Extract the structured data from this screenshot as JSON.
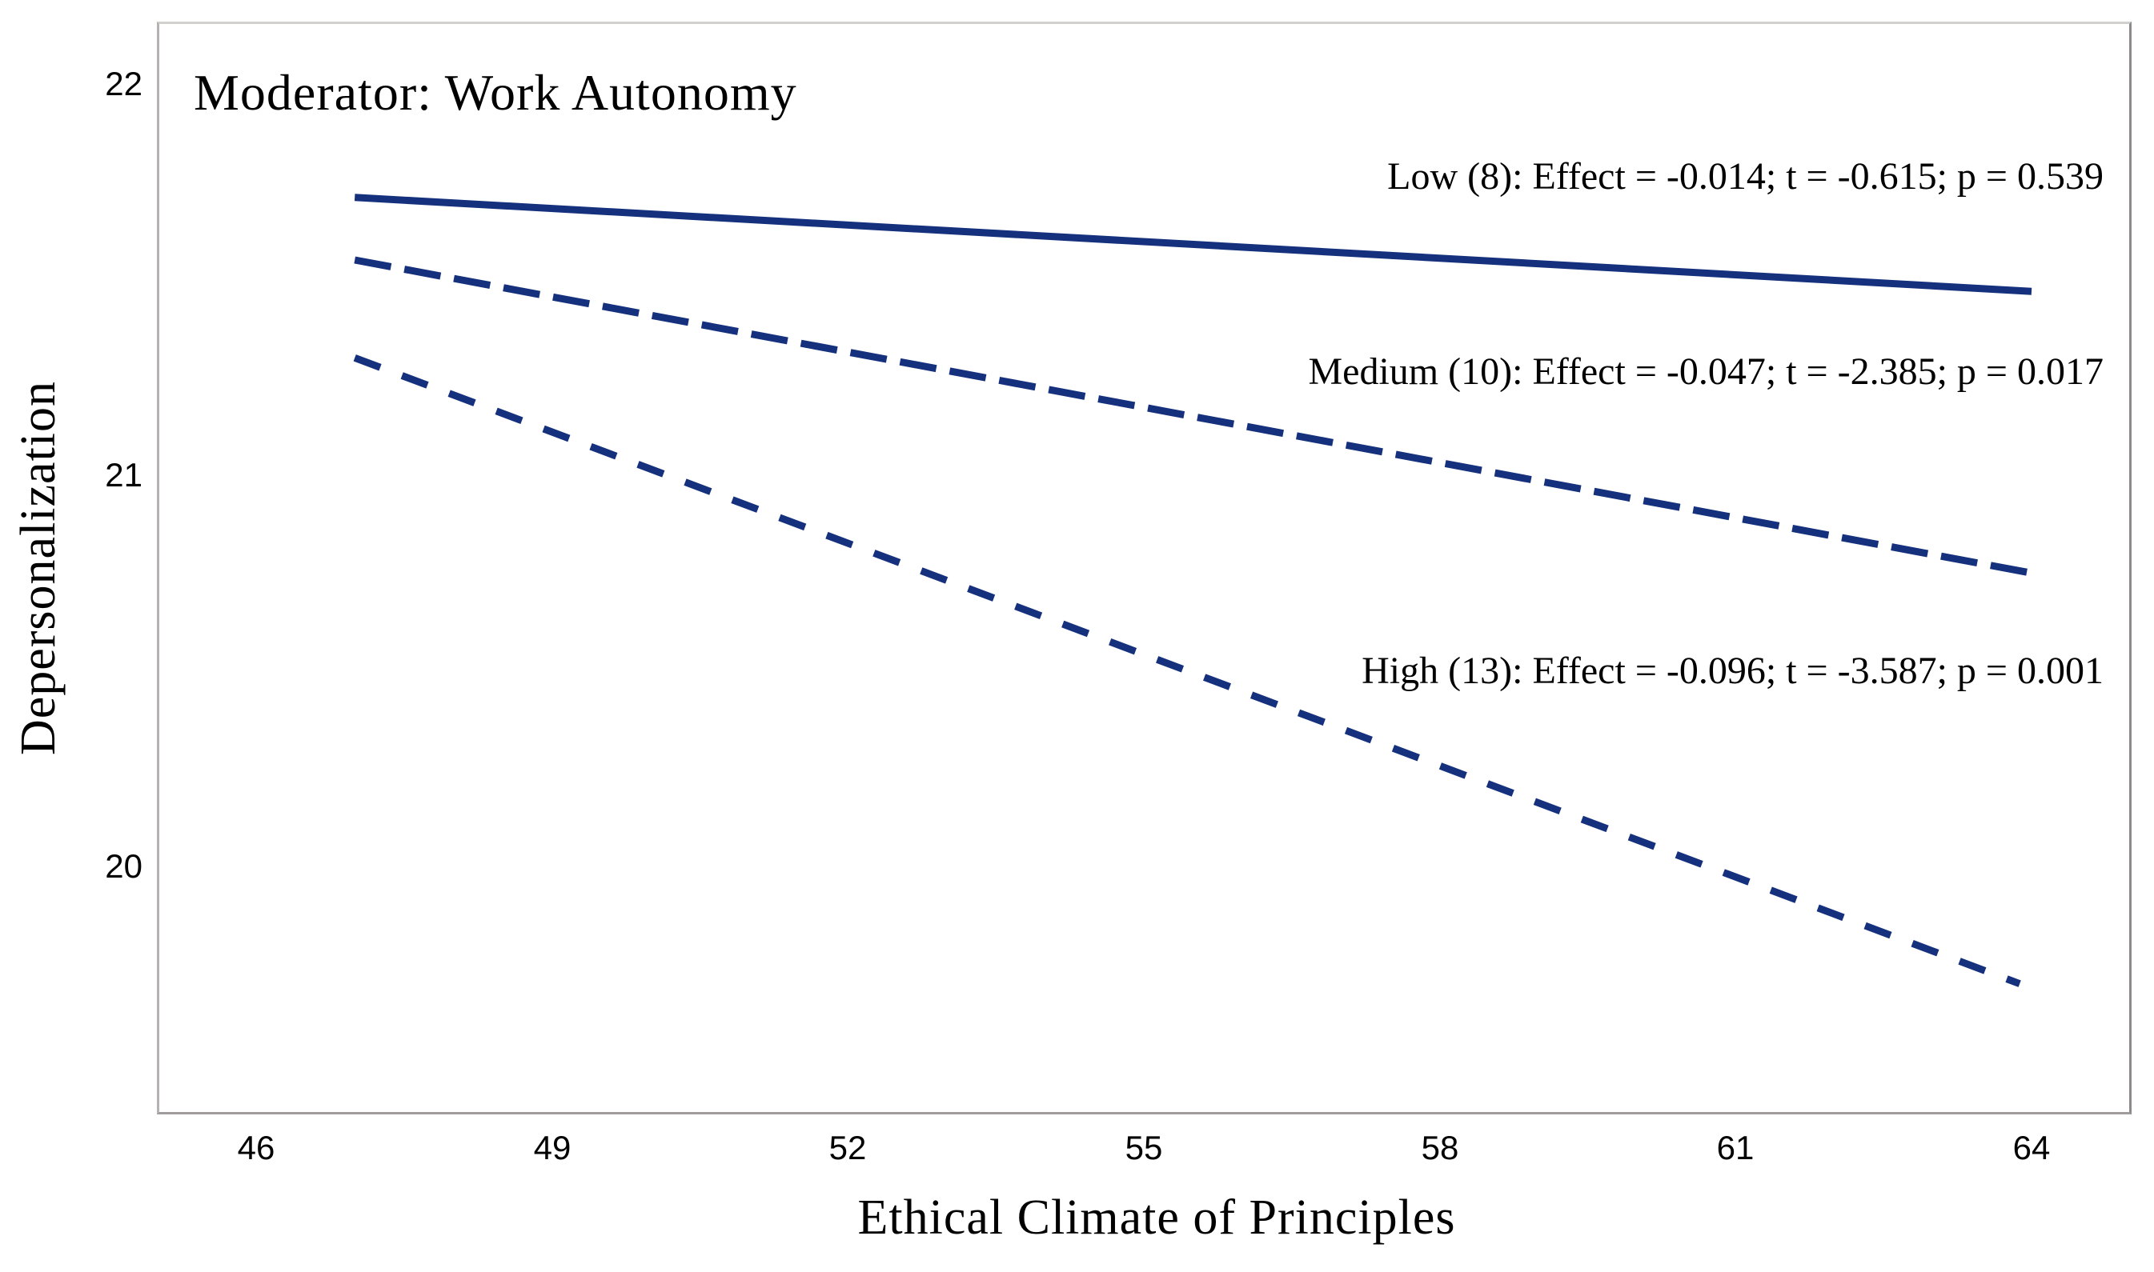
{
  "chart_data": {
    "type": "line",
    "title": "Moderator: Work Autonomy",
    "xlabel": "Ethical Climate of Principles",
    "ylabel": "Depersonalization",
    "x_ticks": [
      46,
      49,
      52,
      55,
      58,
      61,
      64
    ],
    "y_ticks": [
      22,
      21,
      20
    ],
    "xlim": [
      45.0,
      65.0
    ],
    "ylim": [
      19.37,
      22.16
    ],
    "grid": false,
    "legend_position": "inline-annotations",
    "line_color": "#15317d",
    "series": [
      {
        "name": "Low (8)",
        "moderator_value": 8,
        "style": "solid",
        "dash": null,
        "x": [
          47,
          64
        ],
        "y": [
          21.71,
          21.47
        ],
        "effect": -0.014,
        "t": -0.615,
        "p": 0.539,
        "label": "Low (8): Effect = -0.014; t = -0.615; p = 0.539"
      },
      {
        "name": "Medium (10)",
        "moderator_value": 10,
        "style": "dashed",
        "dash": [
          46,
          17
        ],
        "x": [
          47,
          64
        ],
        "y": [
          21.55,
          20.75
        ],
        "effect": -0.047,
        "t": -2.385,
        "p": 0.017,
        "label": "Medium (10): Effect = -0.047; t = -2.385; p = 0.017"
      },
      {
        "name": "High (13)",
        "moderator_value": 13,
        "style": "dashed",
        "dash": [
          34,
          29
        ],
        "x": [
          47,
          63.88
        ],
        "y": [
          21.3,
          19.7
        ],
        "effect": -0.096,
        "t": -3.587,
        "p": 0.001,
        "label": "High (13): Effect = -0.096; t = -3.587; p = 0.001"
      }
    ]
  }
}
